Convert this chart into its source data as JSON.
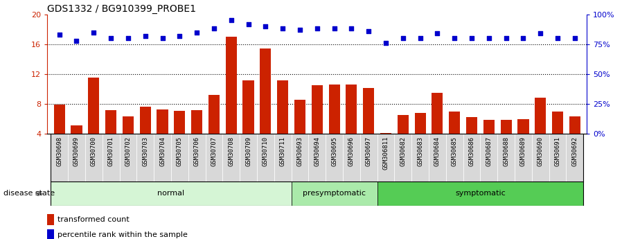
{
  "title": "GDS1332 / BG910399_PROBE1",
  "categories": [
    "GSM30698",
    "GSM30699",
    "GSM30700",
    "GSM30701",
    "GSM30702",
    "GSM30703",
    "GSM30704",
    "GSM30705",
    "GSM30706",
    "GSM30707",
    "GSM30708",
    "GSM30709",
    "GSM30710",
    "GSM30711",
    "GSM30693",
    "GSM30694",
    "GSM30695",
    "GSM30696",
    "GSM30697",
    "GSM306811",
    "GSM30682",
    "GSM30683",
    "GSM30684",
    "GSM30685",
    "GSM30686",
    "GSM30687",
    "GSM30688",
    "GSM30689",
    "GSM30690",
    "GSM30691",
    "GSM30692"
  ],
  "bar_values": [
    7.9,
    5.1,
    11.5,
    7.2,
    6.3,
    7.6,
    7.3,
    7.1,
    7.2,
    9.2,
    17.0,
    11.2,
    15.4,
    11.2,
    8.6,
    10.5,
    10.6,
    10.6,
    10.1,
    4.1,
    6.5,
    6.8,
    9.5,
    7.0,
    6.2,
    5.9,
    5.9,
    6.0,
    8.8,
    7.0,
    6.3
  ],
  "dot_values": [
    83,
    78,
    85,
    80,
    80,
    82,
    80,
    82,
    85,
    88,
    95,
    92,
    90,
    88,
    87,
    88,
    88,
    88,
    86,
    76,
    80,
    80,
    84,
    80,
    80,
    80,
    80,
    80,
    84,
    80,
    80
  ],
  "groups": [
    {
      "label": "normal",
      "start": 0,
      "end": 13,
      "color": "#d5f5d5"
    },
    {
      "label": "presymptomatic",
      "start": 14,
      "end": 18,
      "color": "#aaeaaa"
    },
    {
      "label": "symptomatic",
      "start": 19,
      "end": 30,
      "color": "#55cc55"
    }
  ],
  "bar_color": "#cc2200",
  "dot_color": "#0000cc",
  "ylim_left": [
    4,
    20
  ],
  "ylim_right": [
    0,
    100
  ],
  "yticks_left": [
    4,
    8,
    12,
    16,
    20
  ],
  "yticks_right": [
    0,
    25,
    50,
    75,
    100
  ],
  "grid_values": [
    8,
    12,
    16
  ],
  "left_axis_color": "#cc2200",
  "right_axis_color": "#0000cc",
  "background_color": "#ffffff",
  "label_bar": "transformed count",
  "label_dot": "percentile rank within the sample",
  "disease_state_label": "disease state"
}
